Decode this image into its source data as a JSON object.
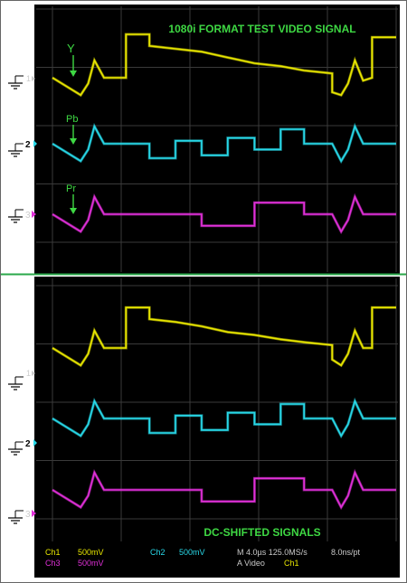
{
  "chart_data": [
    {
      "type": "line",
      "title": "1080i FORMAT TEST VIDEO SIGNAL",
      "markers": [
        "1",
        "2",
        "3"
      ],
      "series": [
        {
          "name": "Y",
          "color": "#e8e600",
          "steps": [
            [
              0,
              0
            ],
            [
              0.41,
              -1.2
            ],
            [
              0.52,
              -0.4
            ],
            [
              0.61,
              1.2
            ],
            [
              0.75,
              0
            ],
            [
              1.07,
              0
            ],
            [
              1.07,
              3.0
            ],
            [
              1.41,
              3.0
            ],
            [
              1.41,
              2.2
            ],
            [
              1.79,
              2.0
            ],
            [
              2.17,
              1.8
            ],
            [
              2.55,
              1.4
            ],
            [
              2.94,
              1.0
            ],
            [
              3.32,
              0.8
            ],
            [
              3.66,
              0.5
            ],
            [
              4.07,
              0.3
            ],
            [
              4.07,
              -1.0
            ],
            [
              4.2,
              -1.2
            ],
            [
              4.3,
              -0.4
            ],
            [
              4.4,
              1.2
            ],
            [
              4.52,
              -0.2
            ],
            [
              4.65,
              0
            ],
            [
              4.65,
              2.8
            ],
            [
              5.0,
              2.8
            ]
          ]
        },
        {
          "name": "Pb",
          "color": "#28d8e8",
          "steps": [
            [
              0,
              0
            ],
            [
              0.41,
              -1.2
            ],
            [
              0.52,
              -0.4
            ],
            [
              0.61,
              1.2
            ],
            [
              0.75,
              0
            ],
            [
              1.41,
              0
            ],
            [
              1.41,
              -1.0
            ],
            [
              1.79,
              -1.0
            ],
            [
              1.79,
              0.2
            ],
            [
              2.17,
              0.2
            ],
            [
              2.17,
              -0.8
            ],
            [
              2.55,
              -0.8
            ],
            [
              2.55,
              0.4
            ],
            [
              2.94,
              0.4
            ],
            [
              2.94,
              -0.4
            ],
            [
              3.32,
              -0.4
            ],
            [
              3.32,
              1.0
            ],
            [
              3.66,
              1.0
            ],
            [
              3.66,
              0
            ],
            [
              4.07,
              0
            ],
            [
              4.2,
              -1.2
            ],
            [
              4.3,
              -0.4
            ],
            [
              4.4,
              1.2
            ],
            [
              4.52,
              0
            ],
            [
              5.0,
              0
            ]
          ]
        },
        {
          "name": "Pr",
          "color": "#e030d8",
          "steps": [
            [
              0,
              0
            ],
            [
              0.41,
              -1.2
            ],
            [
              0.52,
              -0.4
            ],
            [
              0.61,
              1.2
            ],
            [
              0.75,
              0
            ],
            [
              2.17,
              0
            ],
            [
              2.17,
              -0.8
            ],
            [
              2.94,
              -0.8
            ],
            [
              2.94,
              0.8
            ],
            [
              3.66,
              0.8
            ],
            [
              3.66,
              0
            ],
            [
              4.07,
              0
            ],
            [
              4.2,
              -1.2
            ],
            [
              4.3,
              -0.4
            ],
            [
              4.4,
              1.2
            ],
            [
              4.52,
              0
            ],
            [
              5.0,
              0
            ]
          ]
        }
      ]
    },
    {
      "type": "line",
      "title": "DC-SHIFTED SIGNALS",
      "markers": [
        "1",
        "2",
        "3"
      ],
      "series": [
        {
          "name": "Ch1",
          "color": "#e8e600",
          "steps": [
            [
              0,
              0
            ],
            [
              0.41,
              -1.2
            ],
            [
              0.52,
              -0.4
            ],
            [
              0.61,
              1.2
            ],
            [
              0.75,
              0
            ],
            [
              1.07,
              0
            ],
            [
              1.07,
              2.8
            ],
            [
              1.41,
              2.8
            ],
            [
              1.41,
              2.0
            ],
            [
              1.79,
              1.8
            ],
            [
              2.17,
              1.5
            ],
            [
              2.55,
              1.1
            ],
            [
              2.94,
              0.9
            ],
            [
              3.32,
              0.6
            ],
            [
              3.66,
              0.4
            ],
            [
              4.07,
              0.2
            ],
            [
              4.07,
              -0.8
            ],
            [
              4.2,
              -1.2
            ],
            [
              4.3,
              -0.4
            ],
            [
              4.4,
              1.2
            ],
            [
              4.52,
              0
            ],
            [
              4.65,
              0
            ],
            [
              4.65,
              2.8
            ],
            [
              5.0,
              2.8
            ]
          ]
        },
        {
          "name": "Ch2",
          "color": "#28d8e8",
          "steps": [
            [
              0,
              0
            ],
            [
              0.41,
              -1.2
            ],
            [
              0.52,
              -0.4
            ],
            [
              0.61,
              1.2
            ],
            [
              0.75,
              0
            ],
            [
              1.41,
              0
            ],
            [
              1.41,
              -1.0
            ],
            [
              1.79,
              -1.0
            ],
            [
              1.79,
              0.2
            ],
            [
              2.17,
              0.2
            ],
            [
              2.17,
              -0.8
            ],
            [
              2.55,
              -0.8
            ],
            [
              2.55,
              0.4
            ],
            [
              2.94,
              0.4
            ],
            [
              2.94,
              -0.4
            ],
            [
              3.32,
              -0.4
            ],
            [
              3.32,
              1.0
            ],
            [
              3.66,
              1.0
            ],
            [
              3.66,
              0
            ],
            [
              4.07,
              0
            ],
            [
              4.2,
              -1.2
            ],
            [
              4.3,
              -0.4
            ],
            [
              4.4,
              1.2
            ],
            [
              4.52,
              0
            ],
            [
              5.0,
              0
            ]
          ]
        },
        {
          "name": "Ch3",
          "color": "#e030d8",
          "steps": [
            [
              0,
              0
            ],
            [
              0.41,
              -1.2
            ],
            [
              0.52,
              -0.4
            ],
            [
              0.61,
              1.2
            ],
            [
              0.75,
              0
            ],
            [
              2.17,
              0
            ],
            [
              2.17,
              -0.8
            ],
            [
              2.94,
              -0.8
            ],
            [
              2.94,
              0.8
            ],
            [
              3.66,
              0.8
            ],
            [
              3.66,
              0
            ],
            [
              4.07,
              0
            ],
            [
              4.2,
              -1.2
            ],
            [
              4.3,
              -0.4
            ],
            [
              4.4,
              1.2
            ],
            [
              4.52,
              0
            ],
            [
              5.0,
              0
            ]
          ]
        }
      ]
    }
  ],
  "status": {
    "ch1": "Ch1",
    "ch1_scale": "500mV",
    "ch3": "Ch3",
    "ch3_scale": "500mV",
    "ch2": "Ch2",
    "ch2_scale": "500mV",
    "timebase": "M 4.0µs 125.0MS/s",
    "resolution": "8.0ns/pt",
    "trigger_label": "A  Video",
    "trigger_source": "Ch1"
  },
  "colors": {
    "background": "#000000",
    "grid": "#3a3a3a",
    "separator": "#2aa84a",
    "annotation": "#3ed843",
    "status_yellow": "#e8e600",
    "status_magenta": "#e030d8",
    "status_cyan": "#28d8e8",
    "status_grey": "#c8c8c8"
  }
}
